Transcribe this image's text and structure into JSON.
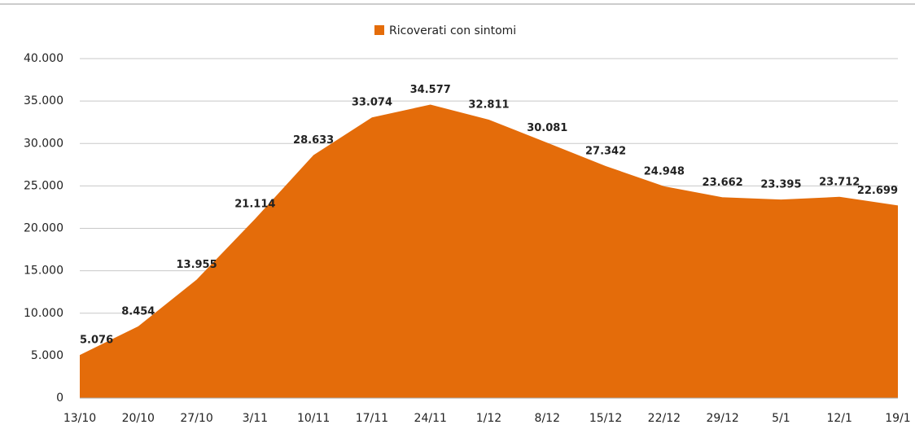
{
  "chart_data": {
    "type": "area",
    "categories": [
      "13/10",
      "20/10",
      "27/10",
      "3/11",
      "10/11",
      "17/11",
      "24/11",
      "1/12",
      "8/12",
      "15/12",
      "22/12",
      "29/12",
      "5/1",
      "12/1",
      "19/1"
    ],
    "series": [
      {
        "name": "Ricoverati con sintomi",
        "color": "#e46c0a",
        "values": [
          5076,
          8454,
          13955,
          21114,
          28633,
          33074,
          34577,
          32811,
          30081,
          27342,
          24948,
          23662,
          23395,
          23712,
          22699
        ],
        "value_labels": [
          "5.076",
          "8.454",
          "13.955",
          "21.114",
          "28.633",
          "33.074",
          "34.577",
          "32.811",
          "30.081",
          "27.342",
          "24.948",
          "23.662",
          "23.395",
          "23.712",
          "22.699"
        ]
      }
    ],
    "ylim": [
      0,
      40000
    ],
    "yticks": [
      0,
      {
        "value": 5000,
        "label": "5.000"
      },
      {
        "value": 10000,
        "label": "10.000"
      },
      {
        "value": 15000,
        "label": "15.000"
      },
      {
        "value": 20000,
        "label": "20.000"
      },
      {
        "value": 25000,
        "label": "25.000"
      },
      {
        "value": 30000,
        "label": "30.000"
      },
      {
        "value": 35000,
        "label": "35.000"
      },
      {
        "value": 40000,
        "label": "40.000"
      }
    ],
    "grid": true,
    "legend": "top"
  }
}
